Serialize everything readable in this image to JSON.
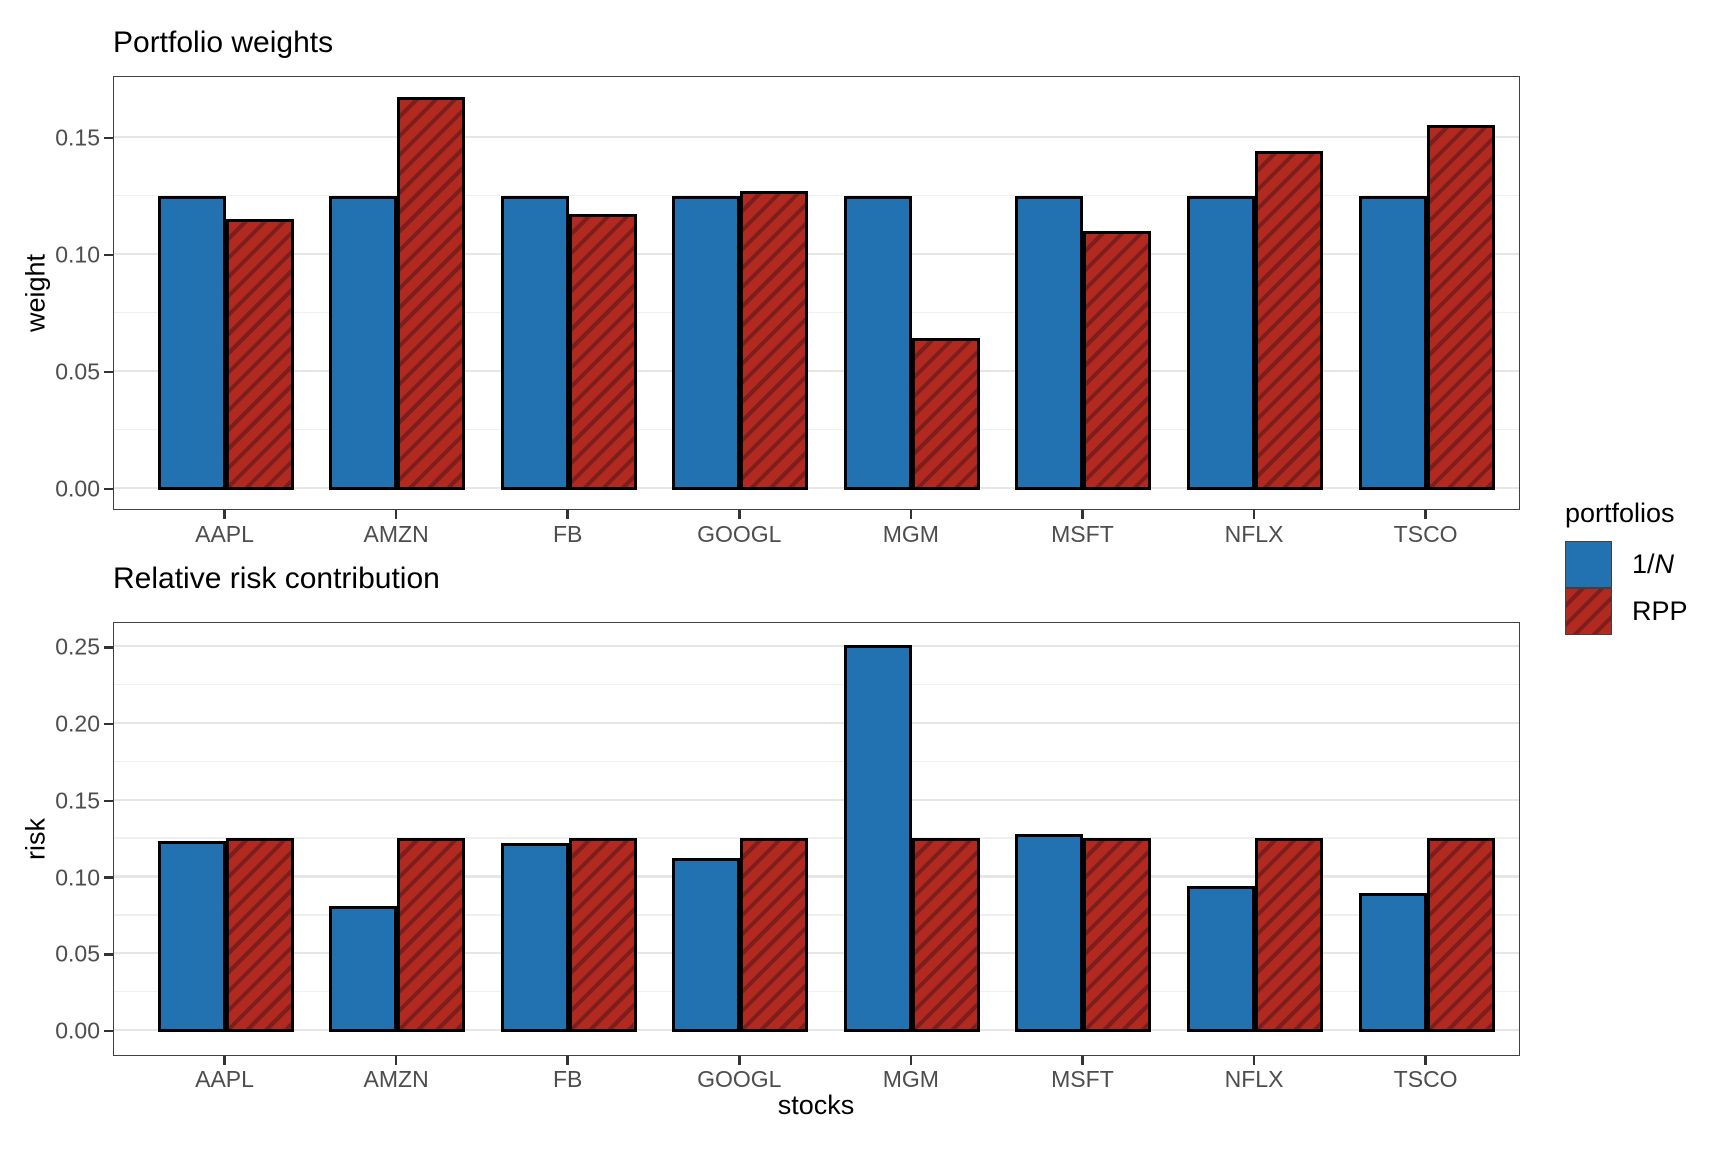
{
  "chart_data": [
    {
      "type": "bar",
      "title": "Portfolio weights",
      "ylabel": "weight",
      "xlabel": "",
      "categories": [
        "AAPL",
        "AMZN",
        "FB",
        "GOOGL",
        "MGM",
        "MSFT",
        "NFLX",
        "TSCO"
      ],
      "series": [
        {
          "name": "1/N",
          "values": [
            0.125,
            0.125,
            0.125,
            0.125,
            0.125,
            0.125,
            0.125,
            0.125
          ]
        },
        {
          "name": "RPP",
          "values": [
            0.115,
            0.167,
            0.117,
            0.127,
            0.064,
            0.11,
            0.144,
            0.155
          ]
        }
      ],
      "yticks": [
        "0.00",
        "0.05",
        "0.10",
        "0.15"
      ],
      "ytick_values": [
        0,
        0.05,
        0.1,
        0.15
      ],
      "minor_tick_values": [
        0.025,
        0.075,
        0.125
      ],
      "ylim": [
        0,
        0.1765
      ],
      "grid": true,
      "legend_position": "right"
    },
    {
      "type": "bar",
      "title": "Relative risk contribution",
      "ylabel": "risk",
      "xlabel": "stocks",
      "categories": [
        "AAPL",
        "AMZN",
        "FB",
        "GOOGL",
        "MGM",
        "MSFT",
        "NFLX",
        "TSCO"
      ],
      "series": [
        {
          "name": "1/N",
          "values": [
            0.123,
            0.081,
            0.122,
            0.112,
            0.251,
            0.128,
            0.094,
            0.089
          ]
        },
        {
          "name": "RPP",
          "values": [
            0.125,
            0.125,
            0.125,
            0.125,
            0.125,
            0.125,
            0.125,
            0.125
          ]
        }
      ],
      "yticks": [
        "0.00",
        "0.05",
        "0.10",
        "0.15",
        "0.20",
        "0.25"
      ],
      "ytick_values": [
        0,
        0.05,
        0.1,
        0.15,
        0.2,
        0.25
      ],
      "minor_tick_values": [
        0.025,
        0.075,
        0.125,
        0.175,
        0.225
      ],
      "ylim": [
        0,
        0.2665
      ],
      "grid": true,
      "legend_position": "right"
    }
  ],
  "legend": {
    "title": "portfolios",
    "items": [
      {
        "label": "1/N",
        "italic_part": "N",
        "swatch": "blue-solid"
      },
      {
        "label": "RPP",
        "swatch": "red-hatched"
      }
    ]
  },
  "colors": {
    "blue": "#2271b1",
    "red": "#b2291f",
    "red_hatch_line": "#7e1e1c",
    "bar_outline": "#000000",
    "grid_major": "#e6e6e6",
    "grid_minor": "#efefef",
    "panel_border": "#404040",
    "tick_mark": "#333333",
    "tick_label": "#4d4d4d"
  }
}
